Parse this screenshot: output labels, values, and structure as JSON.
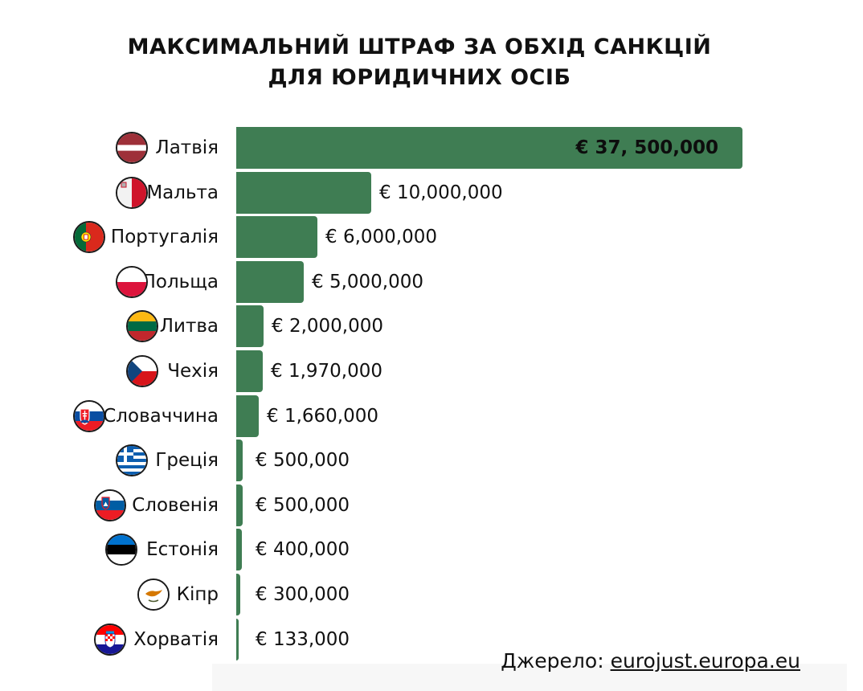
{
  "title_lines": [
    "МАКСИМАЛЬНИЙ ШТРАФ ЗА ОБХІД САНКЦІЙ",
    "ДЛЯ ЮРИДИЧНИХ ОСІБ"
  ],
  "chart_data": {
    "type": "bar",
    "orientation": "horizontal",
    "title": "МАКСИМАЛЬНИЙ ШТРАФ ЗА ОБХІД САНКЦІЙ ДЛЯ ЮРИДИЧНИХ ОСІБ",
    "categories": [
      "Латвія",
      "Мальта",
      "Португалія",
      "Польща",
      "Литва",
      "Чехія",
      "Словаччина",
      "Греція",
      "Словенія",
      "Естонія",
      "Кіпр",
      "Хорватія"
    ],
    "values": [
      37500000,
      10000000,
      6000000,
      5000000,
      2000000,
      1970000,
      1660000,
      500000,
      500000,
      400000,
      300000,
      133000
    ],
    "value_labels": [
      "€ 37, 500,000",
      "€ 10,000,000",
      "€ 6,000,000",
      "€ 5,000,000",
      "€ 2,000,000",
      "€ 1,970,000",
      "€ 1,660,000",
      "€ 500,000",
      "€ 500,000",
      "€ 400,000",
      "€ 300,000",
      "€ 133,000"
    ],
    "flags": [
      "latvia-flag-icon",
      "malta-flag-icon",
      "portugal-flag-icon",
      "poland-flag-icon",
      "lithuania-flag-icon",
      "czechia-flag-icon",
      "slovakia-flag-icon",
      "greece-flag-icon",
      "slovenia-flag-icon",
      "estonia-flag-icon",
      "cyprus-flag-icon",
      "croatia-flag-icon"
    ],
    "bar_color": "#3f7d53",
    "xlim": [
      0,
      37500000
    ],
    "grid": false,
    "legend": "none"
  },
  "source": {
    "label": "Джерело: ",
    "link": "eurojust.europa.eu"
  }
}
